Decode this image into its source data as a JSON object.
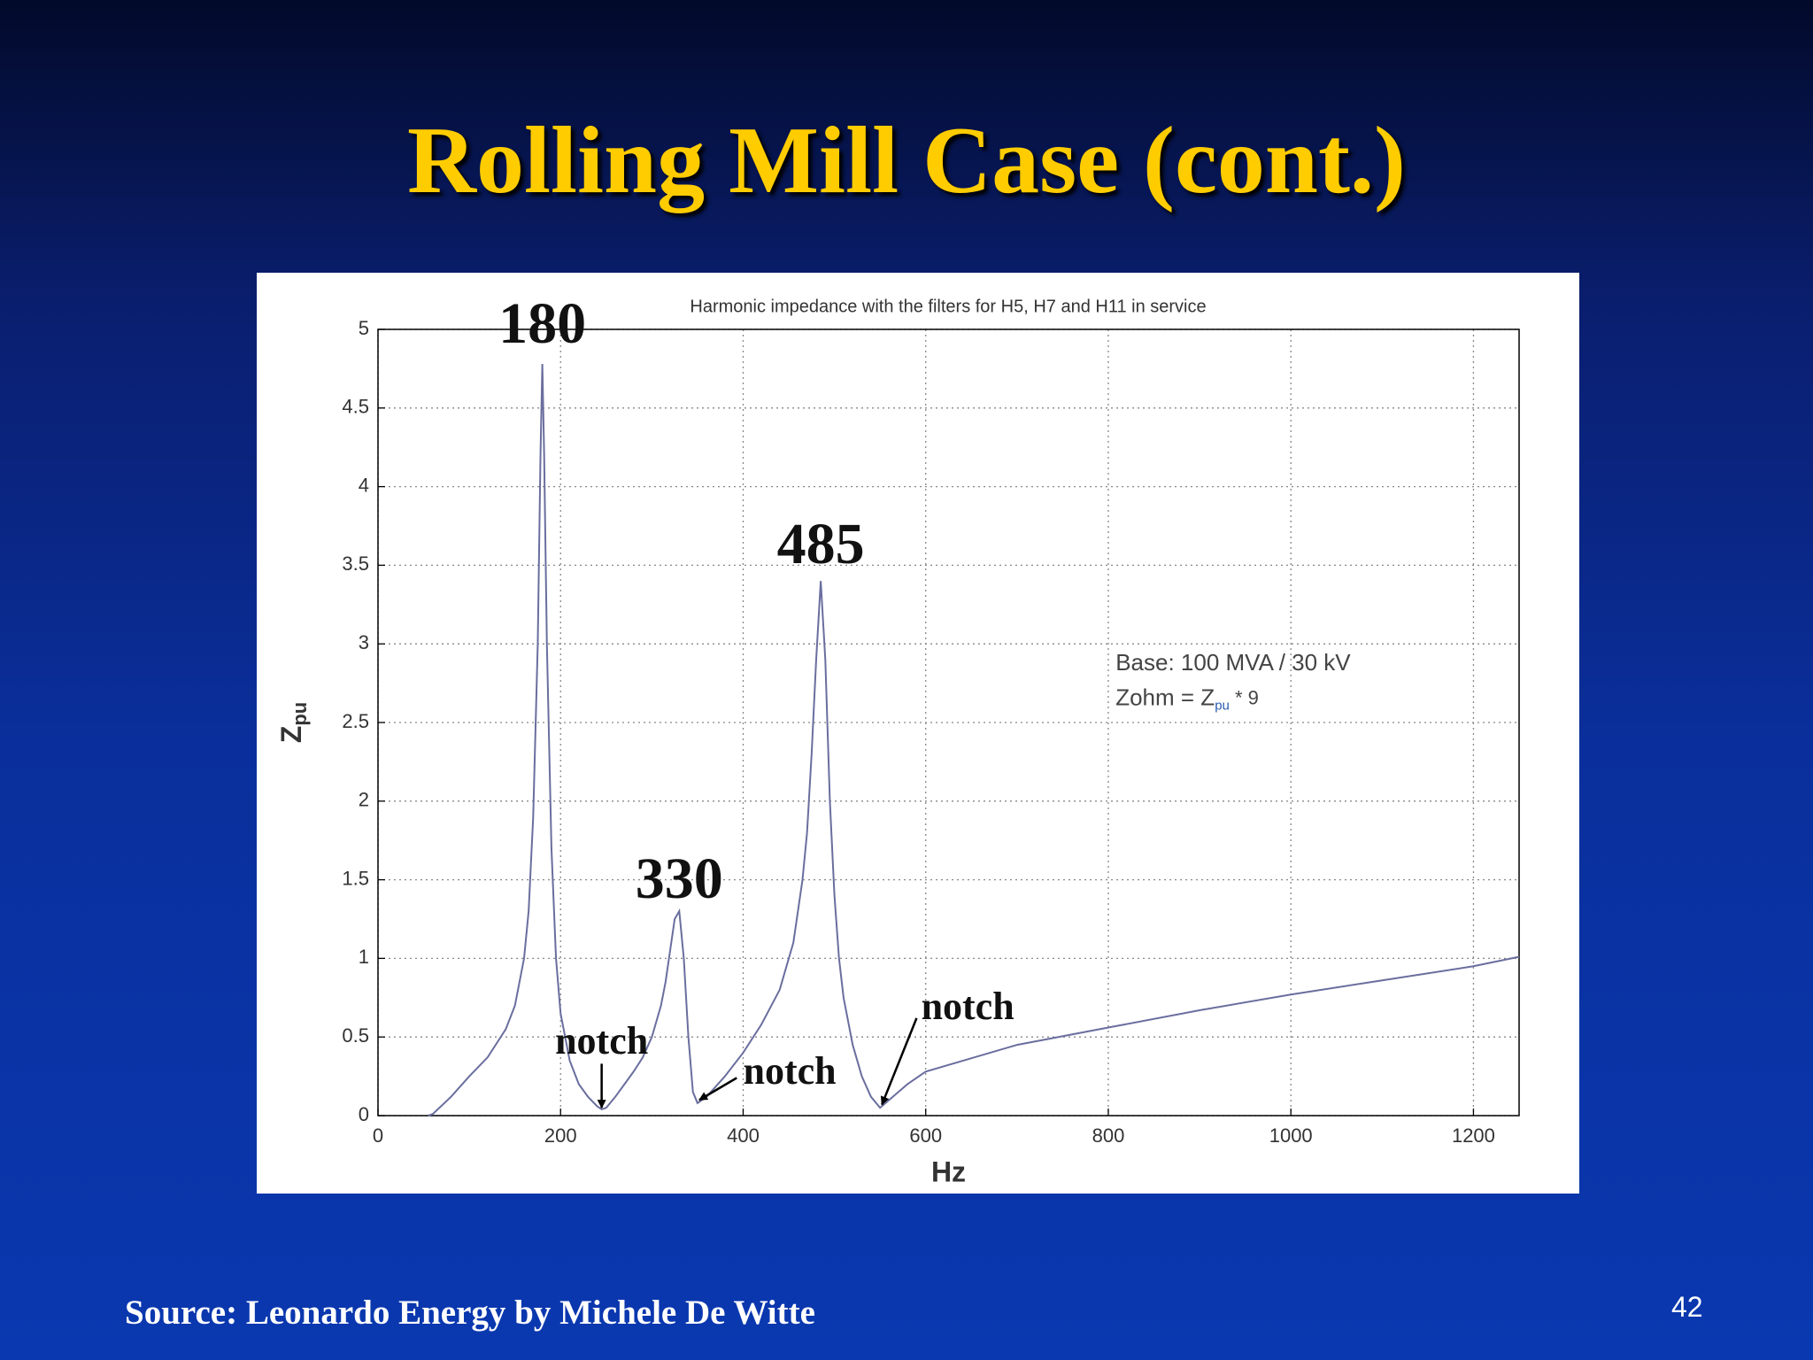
{
  "slide": {
    "title": "Rolling Mill Case (cont.)",
    "source": "Source: Leonardo Energy by Michele De Witte",
    "page_number": "42"
  },
  "chart_data": {
    "type": "line",
    "title": "Harmonic impedance with the filters for H5, H7 and H11 in service",
    "xlabel": "Hz",
    "ylabel": "Z",
    "ylabel_subscript": "pu",
    "x": [
      55,
      60,
      80,
      100,
      120,
      140,
      150,
      160,
      165,
      170,
      175,
      178,
      180,
      182,
      185,
      190,
      195,
      200,
      210,
      220,
      230,
      240,
      245,
      250,
      260,
      270,
      280,
      290,
      300,
      310,
      315,
      320,
      325,
      330,
      335,
      340,
      345,
      350,
      360,
      380,
      400,
      420,
      440,
      455,
      465,
      470,
      475,
      480,
      485,
      490,
      495,
      500,
      505,
      510,
      520,
      530,
      540,
      550,
      560,
      580,
      600,
      700,
      800,
      900,
      1000,
      1100,
      1200,
      1250
    ],
    "values": [
      0,
      0.01,
      0.12,
      0.25,
      0.37,
      0.55,
      0.7,
      1.0,
      1.3,
      1.9,
      3.0,
      4.2,
      4.78,
      4.2,
      3.0,
      1.7,
      1.0,
      0.65,
      0.35,
      0.2,
      0.12,
      0.06,
      0.04,
      0.05,
      0.12,
      0.2,
      0.28,
      0.37,
      0.5,
      0.7,
      0.85,
      1.05,
      1.25,
      1.3,
      1.0,
      0.5,
      0.15,
      0.08,
      0.12,
      0.25,
      0.4,
      0.58,
      0.8,
      1.1,
      1.5,
      1.8,
      2.3,
      2.9,
      3.4,
      2.9,
      2.0,
      1.4,
      1.0,
      0.75,
      0.45,
      0.25,
      0.12,
      0.05,
      0.1,
      0.2,
      0.28,
      0.45,
      0.56,
      0.67,
      0.77,
      0.86,
      0.95,
      1.01
    ],
    "color": "#6a6e9e",
    "xlim": [
      0,
      1250
    ],
    "xticks": [
      0,
      200,
      400,
      600,
      800,
      1000,
      1200
    ],
    "ylim": [
      0,
      5
    ],
    "yticks": [
      0,
      0.5,
      1,
      1.5,
      2,
      2.5,
      3,
      3.5,
      4,
      4.5,
      5
    ],
    "grid": true,
    "annotations": [
      "180",
      "330",
      "485",
      "notch",
      "notch",
      "notch"
    ],
    "note": {
      "line1": "Base: 100 MVA / 30 kV",
      "line2_start": "Zohm = Z",
      "line2_subscript": "pu",
      "line2_end": " * 9"
    }
  }
}
